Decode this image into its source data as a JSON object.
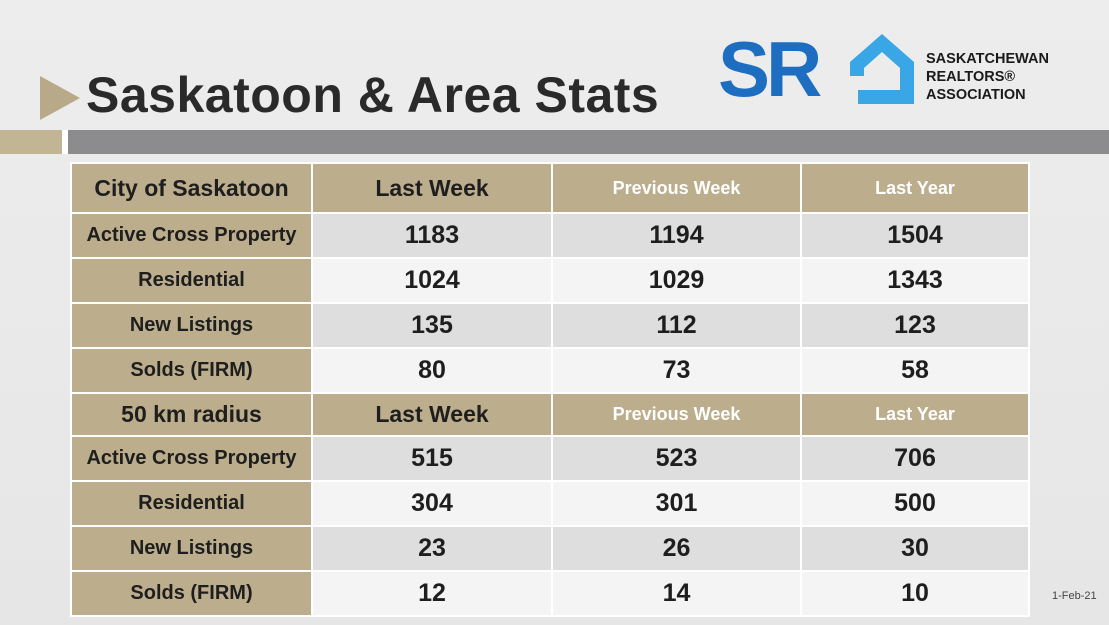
{
  "title": "Saskatoon & Area Stats",
  "logo": {
    "letters": "SR",
    "line1": "SASKATCHEWAN",
    "line2": "REALTORS®",
    "line3": "ASSOCIATION"
  },
  "colors": {
    "accent_tan": "#bcae8c",
    "bar_gray": "#8c8c8e",
    "logo_blue": "#1d6ec1",
    "logo_light_blue": "#39a6e6"
  },
  "sections": [
    {
      "header": [
        "City of Saskatoon",
        "Last Week",
        "Previous Week",
        "Last Year"
      ],
      "rows": [
        {
          "label": "Active Cross Property",
          "values": [
            "1183",
            "1194",
            "1504"
          ]
        },
        {
          "label": "Residential",
          "values": [
            "1024",
            "1029",
            "1343"
          ]
        },
        {
          "label": "New Listings",
          "values": [
            "135",
            "112",
            "123"
          ]
        },
        {
          "label": "Solds (FIRM)",
          "values": [
            "80",
            "73",
            "58"
          ]
        }
      ]
    },
    {
      "header": [
        "50 km radius",
        "Last Week",
        "Previous Week",
        "Last Year"
      ],
      "rows": [
        {
          "label": "Active Cross Property",
          "values": [
            "515",
            "523",
            "706"
          ]
        },
        {
          "label": "Residential",
          "values": [
            "304",
            "301",
            "500"
          ]
        },
        {
          "label": "New Listings",
          "values": [
            "23",
            "26",
            "30"
          ]
        },
        {
          "label": "Solds (FIRM)",
          "values": [
            "12",
            "14",
            "10"
          ]
        }
      ]
    }
  ],
  "date": "1-Feb-21"
}
